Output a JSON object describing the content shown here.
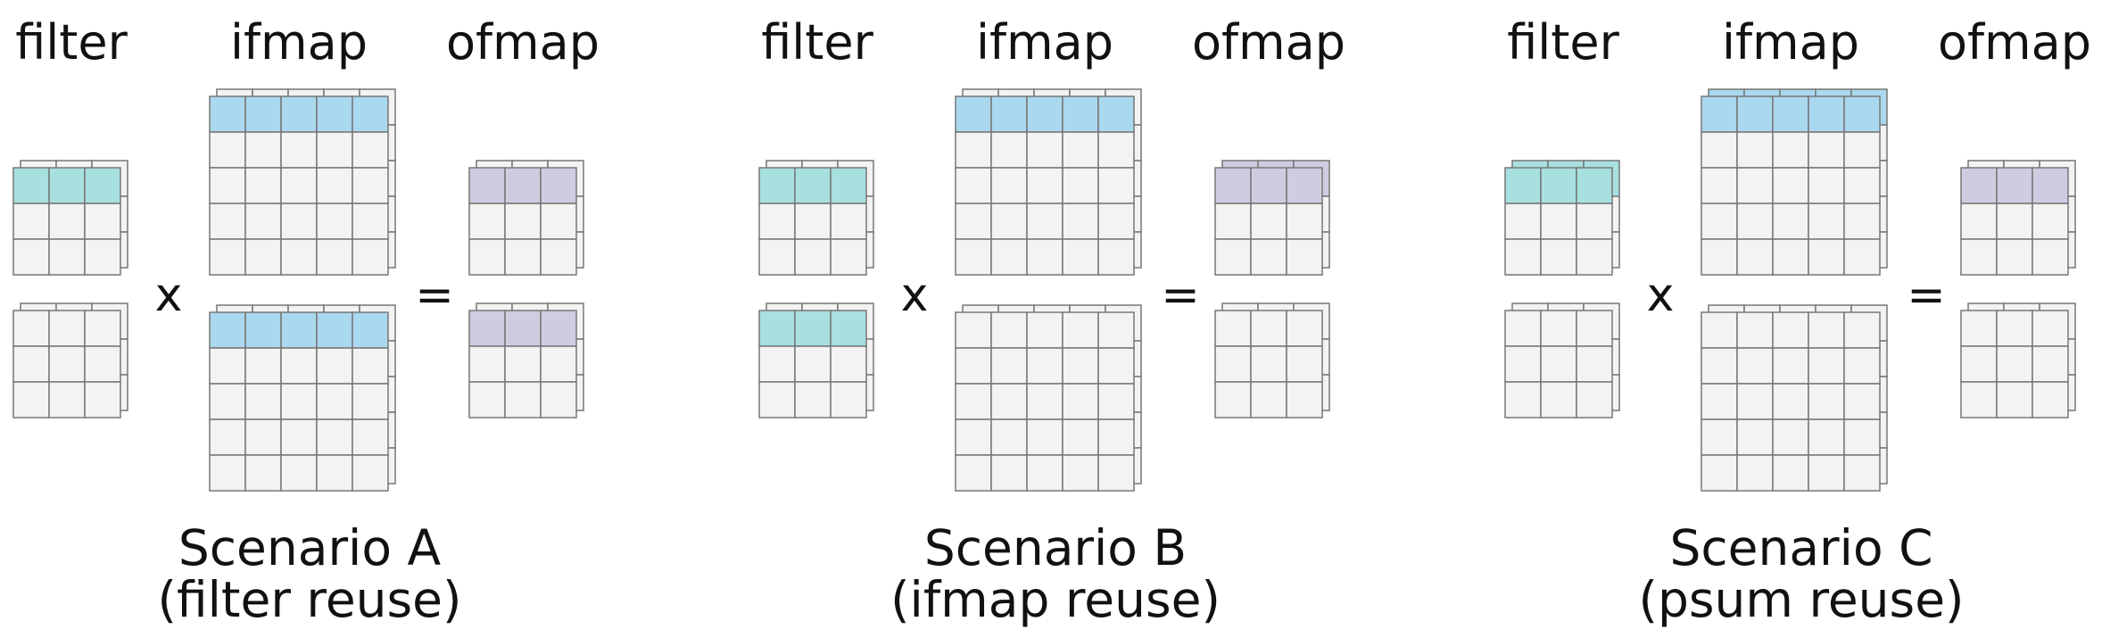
{
  "headers": {
    "filter": "filter",
    "ifmap": "ifmap",
    "ofmap": "ofmap"
  },
  "operators": {
    "times": "x",
    "equals": "="
  },
  "scenarios": [
    {
      "title": "Scenario A",
      "subtitle": "(filter reuse)",
      "highlight": {
        "filter_top": true,
        "filter_bottom": false,
        "ifmap_top": true,
        "ifmap_bottom": true,
        "ofmap_top": true,
        "ofmap_bottom": true
      },
      "ifmap_back_highlighted": false,
      "filter_back_highlighted": false,
      "ofmap_back_highlighted": false
    },
    {
      "title": "Scenario B",
      "subtitle": "(ifmap reuse)",
      "highlight": {
        "filter_top": true,
        "filter_bottom": true,
        "ifmap_top": true,
        "ifmap_bottom": false,
        "ofmap_top": true,
        "ofmap_bottom": false
      },
      "ifmap_back_highlighted": false,
      "filter_back_highlighted": false,
      "ofmap_back_highlighted": true
    },
    {
      "title": "Scenario C",
      "subtitle": "(psum reuse)",
      "highlight": {
        "filter_top": true,
        "filter_bottom": false,
        "ifmap_top": true,
        "ifmap_bottom": false,
        "ofmap_top": true,
        "ofmap_bottom": false
      },
      "ifmap_back_highlighted": true,
      "filter_back_highlighted": true,
      "ofmap_back_highlighted": false
    }
  ],
  "colors": {
    "cell": "#f3f3f3",
    "grid_line": "#777777",
    "filter_highlight": "#a8e0e0",
    "ifmap_highlight": "#aad8ee",
    "ofmap_highlight": "#cfcce2"
  }
}
